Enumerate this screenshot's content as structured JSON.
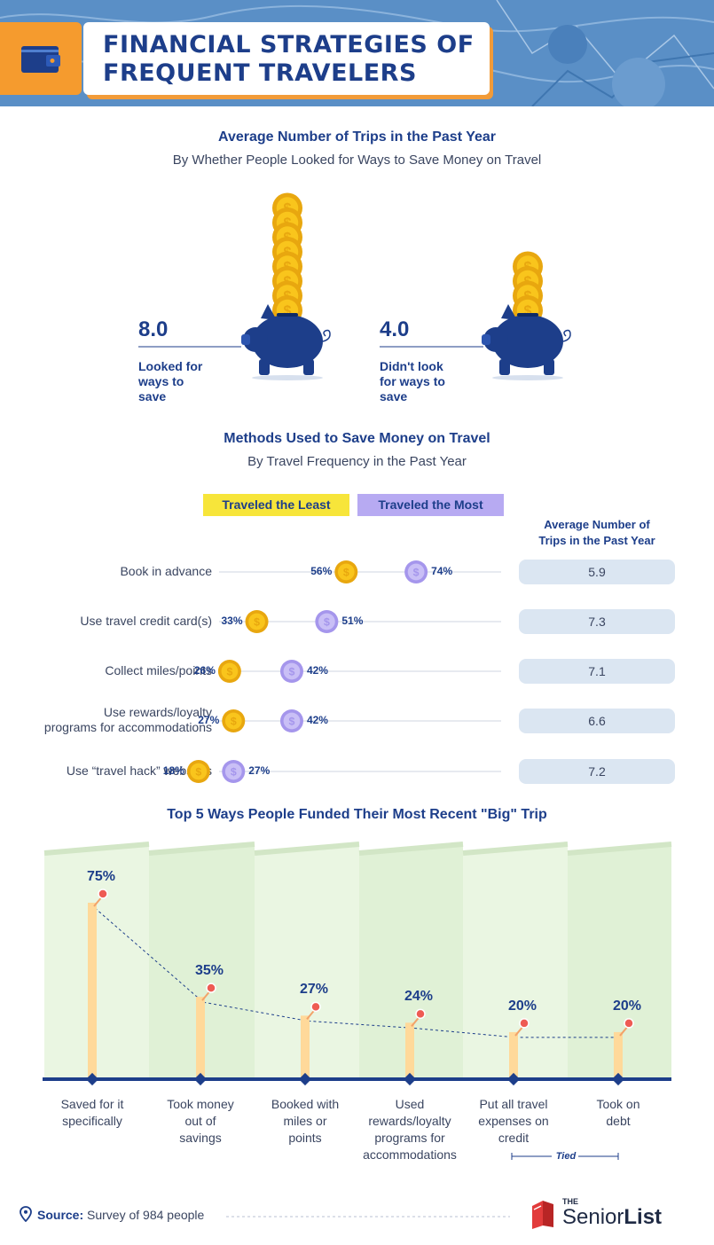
{
  "header": {
    "title_line1": "FINANCIAL STRATEGIES OF",
    "title_line2": "FREQUENT TRAVELERS",
    "wallet_icon": "wallet-icon",
    "colors": {
      "accent": "#f59b2e",
      "navy": "#1d3e8a",
      "map": "#5a8fc6"
    }
  },
  "trips": {
    "title": "Average Number of Trips in the Past Year",
    "subtitle": "By Whether People Looked for Ways to Save Money on Travel",
    "items": [
      {
        "value": "8.0",
        "label_lines": [
          "Looked for",
          "ways to",
          "save"
        ],
        "coins": 8
      },
      {
        "value": "4.0",
        "label_lines": [
          "Didn't look",
          "for ways to",
          "save"
        ],
        "coins": 4
      }
    ]
  },
  "chart_data": [
    {
      "type": "scatter",
      "title": "Methods Used to Save Money on Travel",
      "subtitle": "By Travel Frequency in the Past Year",
      "legend": [
        "Traveled the Least",
        "Traveled the Most"
      ],
      "legend_placement": "top",
      "categories": [
        "Book in advance",
        "Use travel credit card(s)",
        "Collect miles/points",
        "Use rewards/loyalty programs for accommodations",
        "Use “travel hack” websites"
      ],
      "series": [
        {
          "name": "Traveled the Least",
          "values": [
            56,
            33,
            26,
            27,
            18
          ],
          "color": "#f5c518"
        },
        {
          "name": "Traveled the Most",
          "values": [
            74,
            51,
            42,
            42,
            27
          ],
          "color": "#b7aaf2"
        }
      ],
      "extra_column": {
        "header": "Average Number of Trips in the Past Year",
        "values": [
          "5.9",
          "7.3",
          "7.1",
          "6.6",
          "7.2"
        ]
      },
      "unit": "%"
    },
    {
      "type": "bar",
      "title": "Top 5 Ways People Funded Their Most Recent \"Big\" Trip",
      "categories": [
        "Saved for it specifically",
        "Took money out of savings",
        "Booked with miles or points",
        "Used rewards/loyalty programs for accommodations",
        "Put all travel expenses on credit",
        "Took on debt"
      ],
      "values": [
        75,
        35,
        27,
        24,
        20,
        20
      ],
      "unit": "%",
      "ylim": [
        0,
        80
      ],
      "annotation": "Tied",
      "bar_color": "#ffd99a"
    }
  ],
  "methods_display": {
    "row_label_lines": [
      [
        "Book in advance"
      ],
      [
        "Use travel credit card(s)"
      ],
      [
        "Collect miles/points"
      ],
      [
        "Use rewards/loyalty",
        "programs for accommodations"
      ],
      [
        "Use “travel hack” websites"
      ]
    ],
    "avg_head_lines": [
      "Average Number of",
      "Trips in the Past Year"
    ]
  },
  "funding_display": {
    "value_labels": [
      "75%",
      "35%",
      "27%",
      "24%",
      "20%",
      "20%"
    ],
    "label_lines": [
      [
        "Saved for it",
        "specifically"
      ],
      [
        "Took money",
        "out of",
        "savings"
      ],
      [
        "Booked with",
        "miles or",
        "points"
      ],
      [
        "Used",
        "rewards/loyalty",
        "programs for",
        "accommodations"
      ],
      [
        "Put all travel",
        "expenses on",
        "credit"
      ],
      [
        "Took on",
        "debt"
      ]
    ],
    "tied_label": "Tied"
  },
  "footer": {
    "source_label": "Source:",
    "source_text": "Survey of 984 people",
    "location_icon": "location-pin-icon",
    "logo_the": "THE",
    "logo_senior": "Senior",
    "logo_list": "List"
  }
}
